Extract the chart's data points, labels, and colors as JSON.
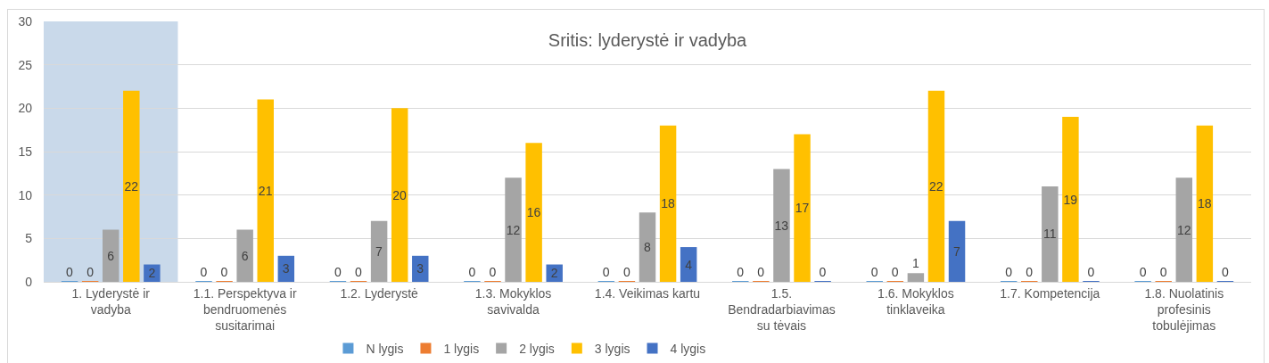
{
  "chart_data": {
    "type": "bar",
    "title": "Sritis: lyderystė ir vadyba",
    "categories": [
      "1. Lyderystė ir vadyba",
      "1.1. Perspektyva ir bendruomenės susitarimai",
      "1.2. Lyderystė",
      "1.3. Mokyklos savivalda",
      "1.4. Veikimas kartu",
      "1.5. Bendradarbiavimas su tėvais",
      "1.6. Mokyklos tinklaveika",
      "1.7. Kompetencija",
      "1.8. Nuolatinis profesinis tobulėjimas"
    ],
    "series": [
      {
        "name": "N lygis",
        "color": "#5b9bd5",
        "values": [
          0,
          0,
          0,
          0,
          0,
          0,
          0,
          0,
          0
        ]
      },
      {
        "name": "1 lygis",
        "color": "#ed7d31",
        "values": [
          0,
          0,
          0,
          0,
          0,
          0,
          0,
          0,
          0
        ]
      },
      {
        "name": "2 lygis",
        "color": "#a5a5a5",
        "values": [
          6,
          6,
          7,
          12,
          8,
          13,
          1,
          11,
          12
        ]
      },
      {
        "name": "3 lygis",
        "color": "#ffc000",
        "values": [
          22,
          21,
          20,
          16,
          18,
          17,
          22,
          19,
          18
        ]
      },
      {
        "name": "4 lygis",
        "color": "#4472c4",
        "values": [
          2,
          3,
          3,
          2,
          4,
          0,
          7,
          0,
          0
        ]
      }
    ],
    "ylim": [
      0,
      30
    ],
    "yticks": [
      0,
      5,
      10,
      15,
      20,
      25,
      30
    ],
    "grid": "y",
    "legend": "bottom",
    "data_labels": true,
    "bands": [
      {
        "axis": "x",
        "from": "1. Lyderystė ir vadyba",
        "to": "1. Lyderystė ir vadyba",
        "color": "#c9d9ea"
      }
    ]
  }
}
